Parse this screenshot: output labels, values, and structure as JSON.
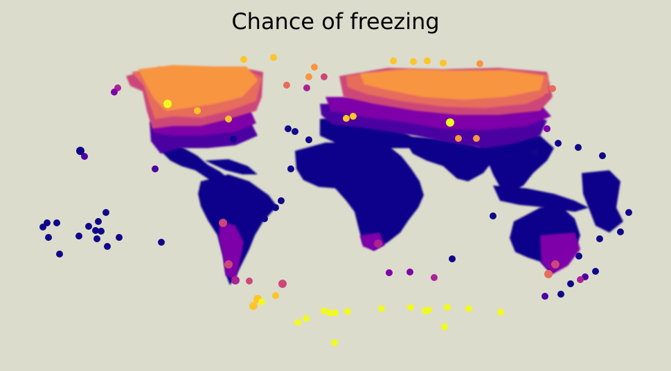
{
  "title": "Chance of freezing",
  "colors": {
    "background": "#dcdccc",
    "level_0": "#10068a",
    "level_1": "#4b03a1",
    "level_2": "#7e03a8",
    "level_3": "#a92395",
    "level_4": "#cc4778",
    "level_5": "#e66c5c",
    "level_6": "#f89540",
    "level_7": "#fdc527",
    "level_8": "#f0f921"
  }
}
